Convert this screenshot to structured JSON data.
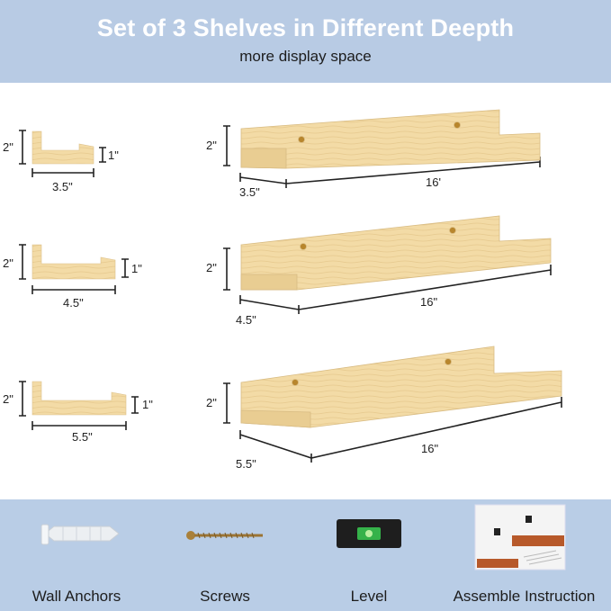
{
  "header": {
    "title": "Set of 3 Shelves in Different Deepth",
    "subtitle": "more display space"
  },
  "rows": [
    {
      "profile_height": "2\"",
      "lip_height": "1\"",
      "depth": "3.5\"",
      "shelf_height": "2\"",
      "shelf_depth": "3.5\"",
      "length": "16'"
    },
    {
      "profile_height": "2\"",
      "lip_height": "1\"",
      "depth": "4.5\"",
      "shelf_height": "2\"",
      "shelf_depth": "4.5\"",
      "length": "16\""
    },
    {
      "profile_height": "2\"",
      "lip_height": "1\"",
      "depth": "5.5\"",
      "shelf_height": "2\"",
      "shelf_depth": "5.5\"",
      "length": "16\""
    }
  ],
  "accessories": [
    {
      "label": "Wall Anchors",
      "icon": "wall-anchor-icon"
    },
    {
      "label": "Screws",
      "icon": "screw-icon"
    },
    {
      "label": "Level",
      "icon": "level-icon"
    },
    {
      "label": "Assemble Instruction",
      "icon": "manual-icon"
    }
  ],
  "colors": {
    "header": "#b8cbe4",
    "footer": "#b9cde6",
    "wood": "#f3dba6",
    "wood_dark": "#e2c483"
  }
}
